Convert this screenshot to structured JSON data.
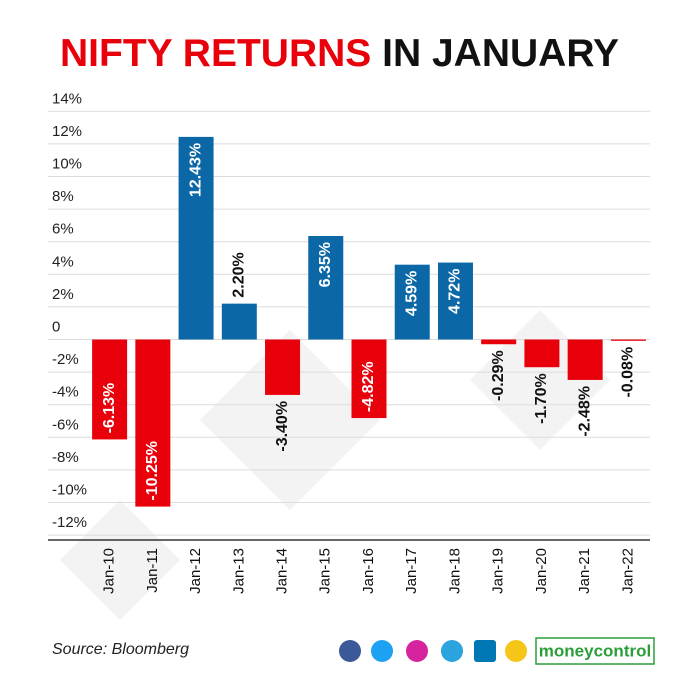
{
  "chart_data": {
    "type": "bar",
    "title": {
      "highlight": "NIFTY RETURNS",
      "rest": "IN JANUARY"
    },
    "categories": [
      "Jan-10",
      "Jan-11",
      "Jan-12",
      "Jan-13",
      "Jan-14",
      "Jan-15",
      "Jan-16",
      "Jan-17",
      "Jan-18",
      "Jan-19",
      "Jan-20",
      "Jan-21",
      "Jan-22"
    ],
    "values": [
      -6.13,
      -10.25,
      12.43,
      2.2,
      -3.4,
      6.35,
      -4.82,
      4.59,
      4.72,
      -0.29,
      -1.7,
      -2.48,
      -0.08
    ],
    "value_labels": [
      "-6.13%",
      "-10.25%",
      "12.43%",
      "2.20%",
      "-3.40%",
      "6.35%",
      "-4.82%",
      "4.59%",
      "4.72%",
      "-0.29%",
      "-1.70%",
      "-2.48%",
      "-0.08%"
    ],
    "positive_color": "#0b67a6",
    "negative_color": "#e8000b",
    "ylim": [
      -12.3,
      15
    ],
    "yticks": [
      {
        "value": 14,
        "label": "14%"
      },
      {
        "value": 12,
        "label": "12%"
      },
      {
        "value": 10,
        "label": "10%"
      },
      {
        "value": 8,
        "label": "8%"
      },
      {
        "value": 6,
        "label": "6%"
      },
      {
        "value": 4,
        "label": "4%"
      },
      {
        "value": 2,
        "label": "2%"
      },
      0,
      {
        "value": -2,
        "label": "-2%"
      },
      {
        "value": -4,
        "label": "-4%"
      },
      {
        "value": -6,
        "label": "-6%"
      },
      {
        "value": -8,
        "label": "-8%"
      },
      {
        "value": -10,
        "label": "-10%"
      },
      {
        "value": -12,
        "label": "-12%"
      }
    ],
    "grid": true,
    "source": "Source: Bloomberg",
    "brand": "moneycontrol"
  }
}
